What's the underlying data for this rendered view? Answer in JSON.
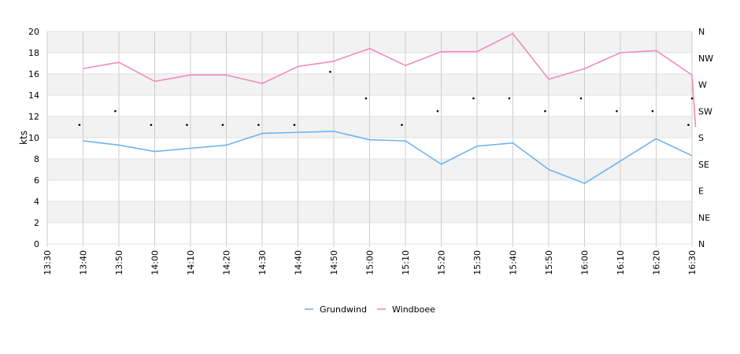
{
  "chart_data": {
    "type": "line",
    "title": "",
    "xlabel": "",
    "ylabel": "kts",
    "x": [
      "13:30",
      "13:40",
      "13:50",
      "14:00",
      "14:10",
      "14:20",
      "14:30",
      "14:40",
      "14:50",
      "15:00",
      "15:10",
      "15:20",
      "15:30",
      "15:40",
      "15:50",
      "16:00",
      "16:10",
      "16:20",
      "16:30"
    ],
    "y_ticks": [
      "0",
      "2",
      "4",
      "6",
      "8",
      "10",
      "12",
      "14",
      "16",
      "18",
      "20"
    ],
    "ylim": [
      0,
      20
    ],
    "grid": true,
    "legend_position": "bottom-center",
    "right_axis": {
      "labels": [
        "N",
        "NE",
        "E",
        "SE",
        "S",
        "SW",
        "W",
        "NW",
        "N"
      ]
    },
    "colors": {
      "grundwind": "#6db4f0",
      "windboee": "#f08cbd",
      "band": "#f2f2f2",
      "vgrid": "#cccccc",
      "hgrid": "#e0e0e0"
    },
    "series": [
      {
        "name": "Grundwind",
        "x": [
          10,
          20,
          30,
          40,
          50,
          60,
          70,
          80,
          90,
          100,
          110,
          120,
          130,
          140,
          150,
          160,
          170,
          180
        ],
        "values": [
          9.7,
          9.3,
          8.7,
          9.0,
          9.3,
          10.4,
          10.5,
          10.6,
          9.8,
          9.7,
          7.5,
          9.2,
          9.5,
          7.0,
          5.7,
          7.8,
          9.9,
          8.3
        ]
      },
      {
        "name": "Windboee",
        "x": [
          10,
          20,
          30,
          40,
          50,
          60,
          70,
          80,
          90,
          100,
          110,
          120,
          130,
          140,
          150,
          160,
          170,
          180,
          181
        ],
        "values": [
          16.5,
          17.1,
          15.3,
          15.9,
          15.9,
          15.1,
          16.7,
          17.2,
          18.4,
          16.8,
          18.1,
          18.1,
          19.8,
          15.5,
          16.5,
          18.0,
          18.2,
          15.9,
          11.0
        ]
      },
      {
        "type": "scatter",
        "x": [
          9,
          19,
          29,
          39,
          49,
          59,
          69,
          79,
          89,
          99,
          109,
          119,
          129,
          139,
          149,
          159,
          169,
          179,
          180
        ],
        "values": [
          11.2,
          12.5,
          11.2,
          11.2,
          11.2,
          11.2,
          11.2,
          16.2,
          13.7,
          11.2,
          12.5,
          13.7,
          13.7,
          12.5,
          13.7,
          12.5,
          12.5,
          11.2,
          13.7
        ]
      }
    ]
  }
}
